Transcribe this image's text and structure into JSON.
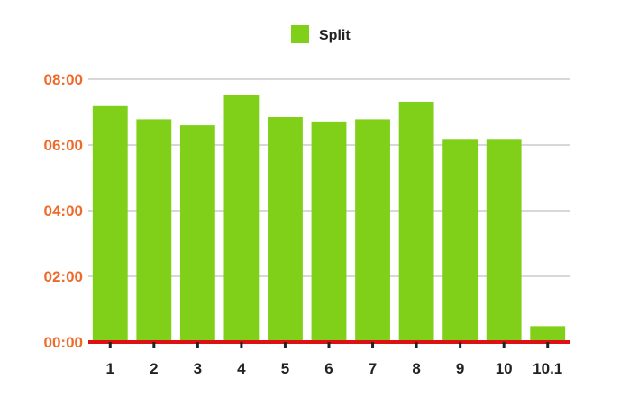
{
  "chart_data": {
    "type": "bar",
    "legend": {
      "label": "Split",
      "placement": "top-center"
    },
    "categories": [
      "1",
      "2",
      "3",
      "4",
      "5",
      "6",
      "7",
      "8",
      "9",
      "10",
      "10.1"
    ],
    "series": [
      {
        "name": "Split",
        "values_seconds": [
          431,
          407,
          396,
          451,
          411,
          403,
          407,
          439,
          371,
          371,
          29
        ]
      }
    ],
    "y_unit": "mm:ss",
    "y_ticks": [
      "00:00",
      "02:00",
      "04:00",
      "06:00",
      "08:00"
    ],
    "ylim_seconds": [
      0,
      480
    ],
    "grid": true,
    "colors": {
      "bar": "#80d01a",
      "y_tick_label": "#ee6a2a",
      "x_tick_label": "#222222",
      "grid": "#cccccc",
      "baseline": "#dd1111"
    }
  }
}
